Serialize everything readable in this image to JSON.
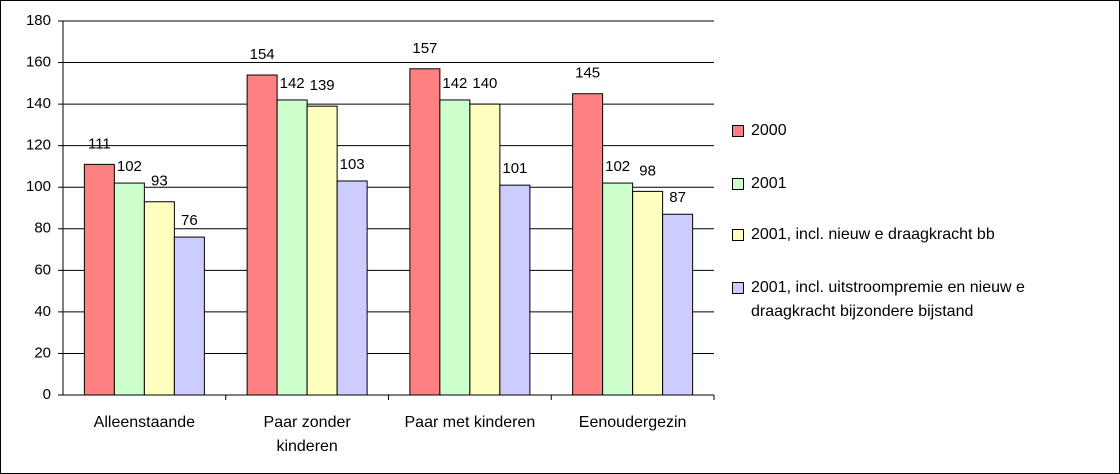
{
  "chart_data": {
    "type": "bar",
    "categories": [
      "Alleenstaande",
      "Paar zonder kinderen",
      "Paar met kinderen",
      "Eenoudergezin"
    ],
    "series": [
      {
        "name": "2000",
        "color": "#ff8080",
        "values": [
          111,
          154,
          157,
          145
        ]
      },
      {
        "name": "2001",
        "color": "#ccffcc",
        "values": [
          102,
          142,
          142,
          102
        ]
      },
      {
        "name": "2001, incl. nieuw e draagkracht bb",
        "color": "#ffffc0",
        "values": [
          93,
          139,
          140,
          98
        ]
      },
      {
        "name": "2001, incl. uitstroompremie en nieuw e draagkracht bijzondere bijstand",
        "color": "#ccccff",
        "values": [
          76,
          103,
          101,
          87
        ]
      }
    ],
    "ylim": [
      0,
      180
    ],
    "yticks": [
      0,
      20,
      40,
      60,
      80,
      100,
      120,
      140,
      160,
      180
    ],
    "grid": true,
    "legend": "right"
  }
}
